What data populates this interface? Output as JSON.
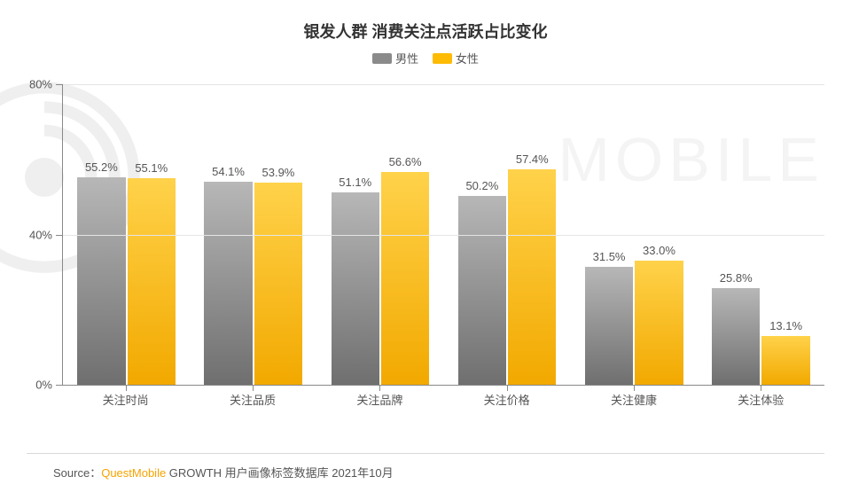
{
  "title": "银发人群 消费关注点活跃占比变化",
  "legend": {
    "male": {
      "label": "男性",
      "color": "#8a8a8a",
      "grad_top": "#b8b7b7",
      "grad_bottom": "#6f6f6f"
    },
    "female": {
      "label": "女性",
      "color": "#fdbb05",
      "grad_top": "#ffd24a",
      "grad_bottom": "#f2a900"
    }
  },
  "chart": {
    "type": "bar-grouped",
    "ylim": [
      0,
      80
    ],
    "yticks": [
      0,
      40,
      80
    ],
    "ysuffix": "%",
    "grid_color": "#e5e5e5",
    "axis_color": "#888888",
    "background_color": "#ffffff",
    "label_fontsize": 13,
    "title_fontsize": 18,
    "categories": [
      "关注时尚",
      "关注品质",
      "关注品牌",
      "关注价格",
      "关注健康",
      "关注体验"
    ],
    "series": [
      {
        "key": "male",
        "values": [
          55.2,
          54.1,
          51.1,
          50.2,
          31.5,
          25.8
        ]
      },
      {
        "key": "female",
        "values": [
          55.1,
          53.9,
          56.6,
          57.4,
          33.0,
          13.1
        ]
      }
    ],
    "value_labels": [
      [
        "55.2%",
        "55.1%"
      ],
      [
        "54.1%",
        "53.9%"
      ],
      [
        "51.1%",
        "56.6%"
      ],
      [
        "50.2%",
        "57.4%"
      ],
      [
        "31.5%",
        "33.0%"
      ],
      [
        "25.8%",
        "13.1%"
      ]
    ]
  },
  "source": {
    "prefix": "Source：",
    "brand": "QuestMobile",
    "suffix": " GROWTH 用户画像标签数据库 2021年10月"
  },
  "watermark_text": "MOBILE"
}
